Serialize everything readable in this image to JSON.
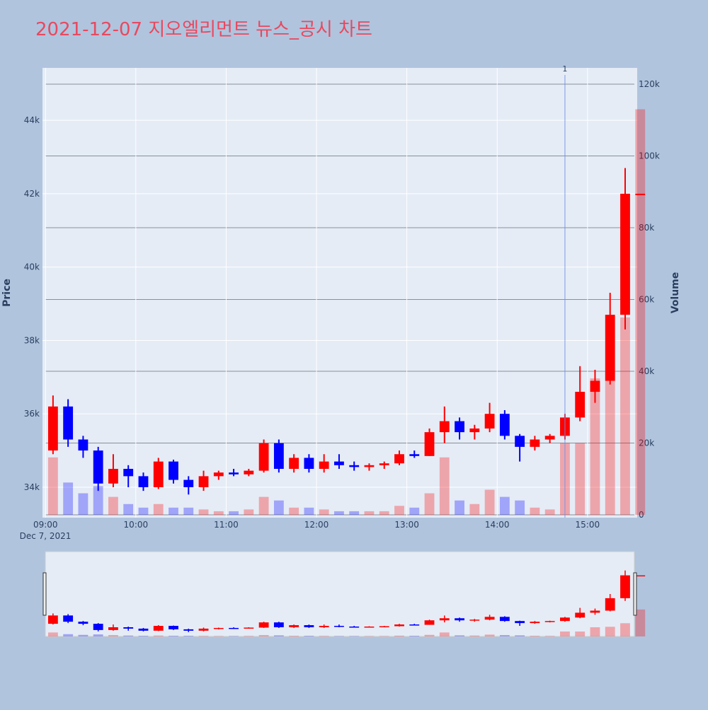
{
  "chart_data": {
    "type": "candlestick",
    "title": "2021-12-07 지오엘리먼트 뉴스_공시 차트",
    "y_title": "Price",
    "y2_title": "Volume",
    "x_date_label": "Dec 7, 2021",
    "increasing_color": "#ff0000",
    "decreasing_color": "#0000ff",
    "x": [
      "09:00",
      "09:10",
      "09:20",
      "09:30",
      "09:40",
      "09:50",
      "10:00",
      "10:10",
      "10:20",
      "10:30",
      "10:40",
      "10:50",
      "11:00",
      "11:10",
      "11:20",
      "11:30",
      "11:40",
      "11:50",
      "12:00",
      "12:10",
      "12:20",
      "12:30",
      "12:40",
      "12:50",
      "13:00",
      "13:10",
      "13:20",
      "13:30",
      "13:40",
      "13:50",
      "14:00",
      "14:10",
      "14:20",
      "14:30",
      "14:40",
      "14:50",
      "15:00",
      "15:10",
      "15:20",
      "15:30"
    ],
    "open": [
      35000,
      36200,
      35300,
      35000,
      34100,
      34500,
      34300,
      34000,
      34700,
      34200,
      34000,
      34300,
      34400,
      34350,
      34450,
      35200,
      34500,
      34800,
      34500,
      34700,
      34600,
      34550,
      34600,
      34650,
      34900,
      34850,
      35500,
      35800,
      35500,
      35600,
      36000,
      35400,
      35100,
      35300,
      35400,
      35900,
      36600,
      36900,
      38700,
      42000
    ],
    "high": [
      36500,
      36400,
      35400,
      35100,
      34900,
      34600,
      34400,
      34800,
      34750,
      34300,
      34450,
      34450,
      34500,
      34500,
      35300,
      35300,
      34900,
      34900,
      34900,
      34900,
      34700,
      34650,
      34700,
      35000,
      35000,
      35600,
      36200,
      35900,
      35700,
      36300,
      36100,
      35450,
      35400,
      35450,
      36000,
      37300,
      37200,
      39300,
      42700,
      42000
    ],
    "low": [
      34900,
      35100,
      34800,
      33900,
      34000,
      34000,
      33900,
      33950,
      34100,
      33800,
      33900,
      34200,
      34300,
      34300,
      34400,
      34400,
      34400,
      34400,
      34400,
      34500,
      34450,
      34450,
      34500,
      34600,
      34800,
      34850,
      35200,
      35300,
      35300,
      35500,
      35300,
      34700,
      35000,
      35200,
      35300,
      35800,
      36300,
      36800,
      38300,
      42000
    ],
    "close": [
      36200,
      35300,
      35000,
      34100,
      34500,
      34300,
      34000,
      34700,
      34200,
      34000,
      34300,
      34400,
      34350,
      34450,
      35200,
      34500,
      34800,
      34500,
      34700,
      34600,
      34550,
      34600,
      34650,
      34900,
      34850,
      35500,
      35800,
      35500,
      35600,
      36000,
      35400,
      35100,
      35300,
      35400,
      35900,
      36600,
      36900,
      38700,
      42000,
      42000
    ],
    "volume": [
      16000,
      9000,
      6000,
      8000,
      5000,
      3000,
      2000,
      3000,
      2000,
      2000,
      1500,
      1000,
      1000,
      1500,
      5000,
      4000,
      2000,
      2000,
      1500,
      1000,
      1000,
      1000,
      1000,
      2500,
      2000,
      6000,
      16000,
      4000,
      3000,
      7000,
      5000,
      4000,
      2000,
      1500,
      20000,
      20000,
      38000,
      40000,
      55000,
      113000
    ],
    "xlim": [
      "08:58",
      "15:33"
    ],
    "xticks": [
      "09:00",
      "10:00",
      "11:00",
      "12:00",
      "13:00",
      "14:00",
      "15:00"
    ],
    "ylim": [
      33170,
      45430
    ],
    "yticks": [
      {
        "value": 34000,
        "label": "34k"
      },
      {
        "value": 36000,
        "label": "36k"
      },
      {
        "value": 38000,
        "label": "38k"
      },
      {
        "value": 40000,
        "label": "40k"
      },
      {
        "value": 42000,
        "label": "42k"
      },
      {
        "value": 44000,
        "label": "44k"
      }
    ],
    "y2lim": [
      -790,
      124530
    ],
    "y2ticks": [
      0,
      {
        "value": 20000,
        "label": "20k"
      },
      {
        "value": 40000,
        "label": "40k"
      },
      {
        "value": 60000,
        "label": "60k"
      },
      {
        "value": 80000,
        "label": "80k"
      },
      {
        "value": 100000,
        "label": "100k"
      },
      {
        "value": 120000,
        "label": "120k"
      }
    ],
    "annotations": [
      {
        "x": "14:45",
        "text": "1"
      }
    ],
    "grid": true
  }
}
